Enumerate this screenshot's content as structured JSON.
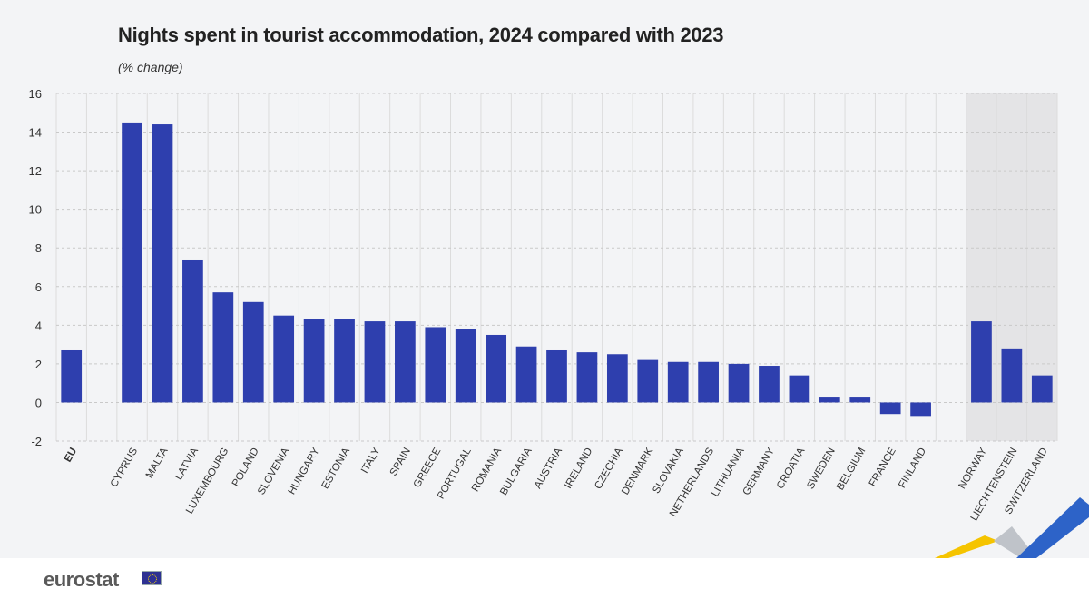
{
  "title": "Nights spent in tourist accommodation, 2024 compared with 2023",
  "subtitle": "(% change)",
  "logo": "eurostat",
  "colors": {
    "bar": "#2e3fae",
    "shade": "#e4e4e6",
    "grid": "#c9c9c9",
    "accent_yellow": "#f5c400",
    "accent_blue": "#2d63c8"
  },
  "chart_data": {
    "type": "bar",
    "categories": [
      "EU",
      "CYPRUS",
      "MALTA",
      "LATVIA",
      "LUXEMBOURG",
      "POLAND",
      "SLOVENIA",
      "HUNGARY",
      "ESTONIA",
      "ITALY",
      "SPAIN",
      "GREECE",
      "PORTUGAL",
      "ROMANIA",
      "BULGARIA",
      "AUSTRIA",
      "IRELAND",
      "CZECHIA",
      "DENMARK",
      "SLOVAKIA",
      "NETHERLANDS",
      "LITHUANIA",
      "GERMANY",
      "CROATIA",
      "SWEDEN",
      "BELGIUM",
      "FRANCE",
      "FINLAND",
      "NORWAY",
      "LIECHTENSTEIN",
      "SWITZERLAND"
    ],
    "values": [
      2.7,
      14.5,
      14.4,
      7.4,
      5.7,
      5.2,
      4.5,
      4.3,
      4.3,
      4.2,
      4.2,
      3.9,
      3.8,
      3.5,
      2.9,
      2.7,
      2.6,
      2.5,
      2.2,
      2.1,
      2.1,
      2.0,
      1.9,
      1.4,
      0.3,
      0.3,
      -0.6,
      -0.7,
      4.2,
      2.8,
      1.4
    ],
    "ylim": [
      -2,
      16
    ],
    "yticks": [
      "-2",
      "0",
      "2",
      "4",
      "6",
      "8",
      "10",
      "12",
      "14",
      "16"
    ],
    "grid": true,
    "title": "Nights spent in tourist accommodation, 2024 compared with 2023",
    "ylabel": "",
    "xlabel": ""
  }
}
